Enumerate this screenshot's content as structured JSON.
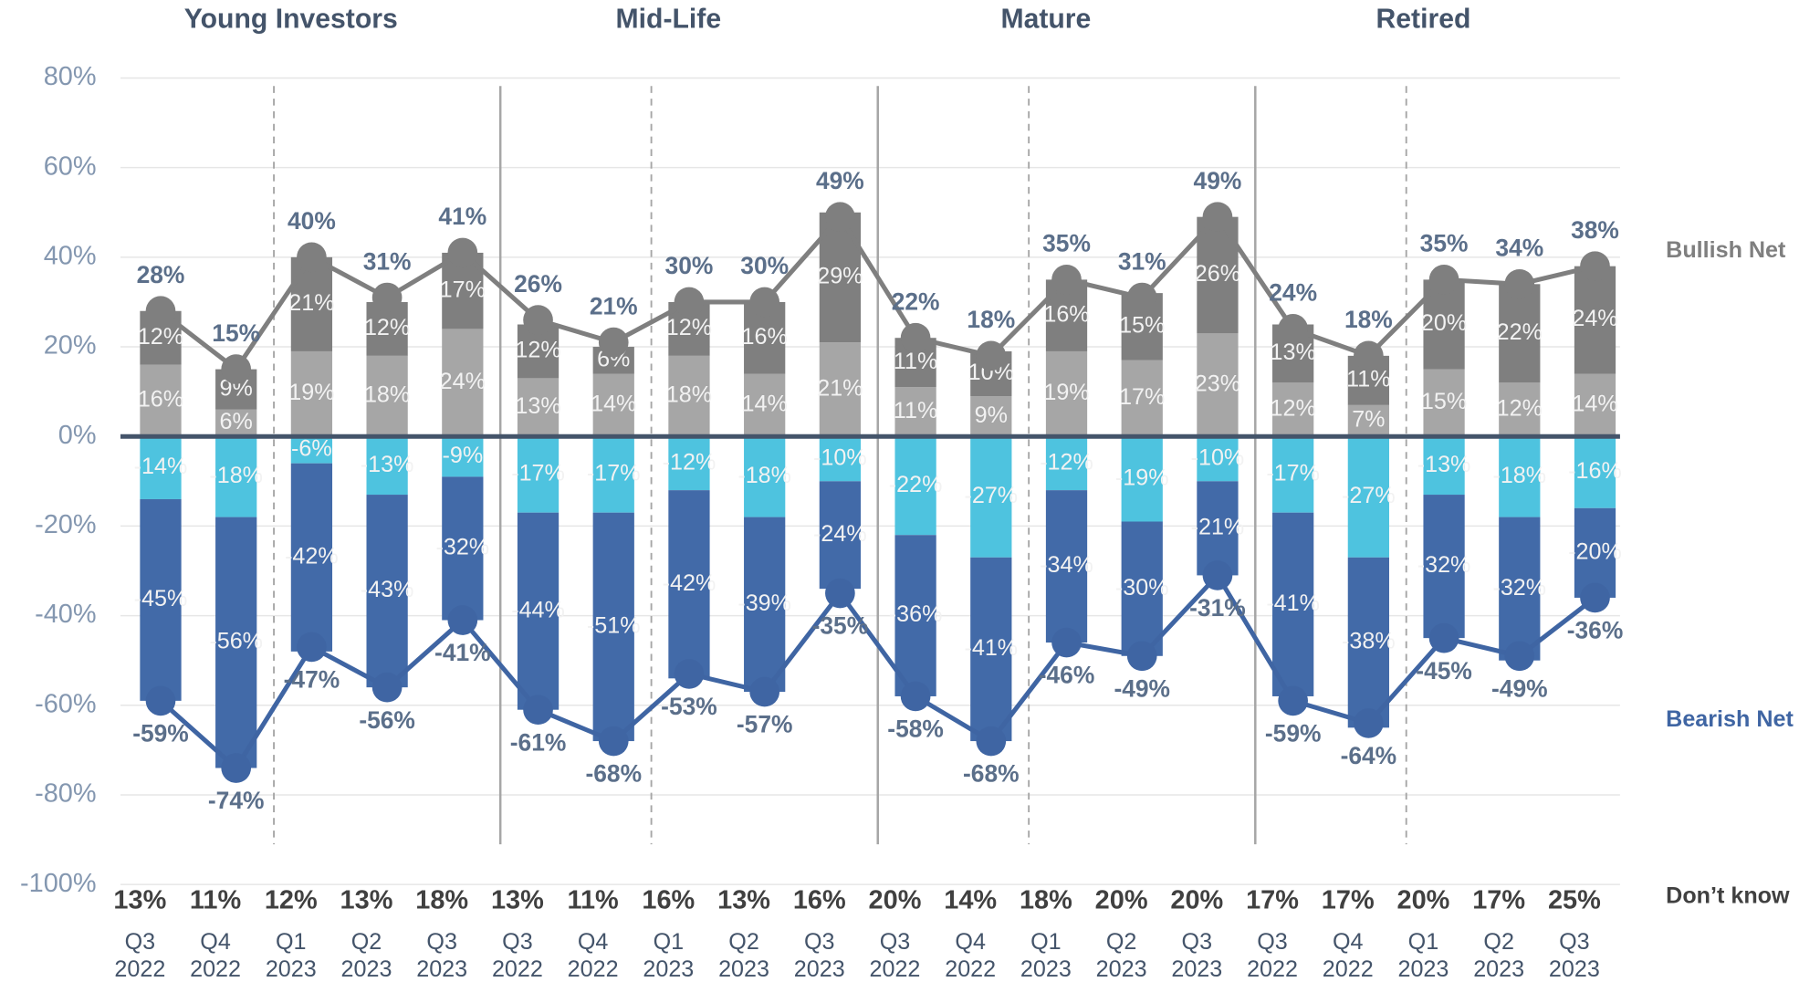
{
  "chart_data": {
    "type": "bar",
    "groups": [
      "Young Investors",
      "Mid-Life",
      "Mature",
      "Retired"
    ],
    "categories": [
      [
        "Q3",
        "2022"
      ],
      [
        "Q4",
        "2022"
      ],
      [
        "Q1",
        "2023"
      ],
      [
        "Q2",
        "2023"
      ],
      [
        "Q3",
        "2023"
      ],
      [
        "Q3",
        "2022"
      ],
      [
        "Q4",
        "2022"
      ],
      [
        "Q1",
        "2023"
      ],
      [
        "Q2",
        "2023"
      ],
      [
        "Q3",
        "2023"
      ],
      [
        "Q3",
        "2022"
      ],
      [
        "Q4",
        "2022"
      ],
      [
        "Q1",
        "2023"
      ],
      [
        "Q2",
        "2023"
      ],
      [
        "Q3",
        "2023"
      ],
      [
        "Q3",
        "2022"
      ],
      [
        "Q4",
        "2022"
      ],
      [
        "Q1",
        "2023"
      ],
      [
        "Q2",
        "2023"
      ],
      [
        "Q3",
        "2023"
      ]
    ],
    "ylim": [
      -100,
      80
    ],
    "yticks": [
      {
        "value": 80,
        "label": "80%"
      },
      {
        "value": 60,
        "label": "60%"
      },
      {
        "value": 40,
        "label": "40%"
      },
      {
        "value": 20,
        "label": "20%"
      },
      {
        "value": 0,
        "label": "0%"
      },
      {
        "value": -20,
        "label": "-20%"
      },
      {
        "value": -40,
        "label": "-40%"
      },
      {
        "value": -60,
        "label": "-60%"
      },
      {
        "value": -80,
        "label": "-80%"
      },
      {
        "value": -100,
        "label": "-100%"
      }
    ],
    "grid": true,
    "series": [
      {
        "type": "bar",
        "color": "#a6a6a6",
        "values": [
          16,
          6,
          19,
          18,
          24,
          13,
          14,
          18,
          14,
          21,
          11,
          9,
          19,
          17,
          23,
          12,
          7,
          15,
          12,
          14
        ],
        "value_labels": [
          "16%",
          "6%",
          "19%",
          "18%",
          "24%",
          "13%",
          "14%",
          "18%",
          "14%",
          "21%",
          "11%",
          "9%",
          "19%",
          "17%",
          "23%",
          "12%",
          "7%",
          "15%",
          "12%",
          "14%"
        ]
      },
      {
        "type": "bar",
        "color": "#7f7f7f",
        "values": [
          12,
          9,
          21,
          12,
          17,
          12,
          6,
          12,
          16,
          29,
          11,
          10,
          16,
          15,
          26,
          13,
          11,
          20,
          22,
          24
        ],
        "value_labels": [
          "12%",
          "9%",
          "21%",
          "12%",
          "17%",
          "12%",
          "6%",
          "12%",
          "16%",
          "29%",
          "11%",
          "10%",
          "16%",
          "15%",
          "26%",
          "13%",
          "11%",
          "20%",
          "22%",
          "24%"
        ]
      },
      {
        "type": "bar",
        "color": "#4ec3df",
        "values": [
          -14,
          -18,
          -6,
          -13,
          -9,
          -17,
          -17,
          -12,
          -18,
          -10,
          -22,
          -27,
          -12,
          -19,
          -10,
          -17,
          -27,
          -13,
          -18,
          -16
        ],
        "value_labels": [
          "-14%",
          "-18%",
          "-6%",
          "-13%",
          "-9%",
          "-17%",
          "-17%",
          "-12%",
          "-18%",
          "-10%",
          "-22%",
          "-27%",
          "-12%",
          "-19%",
          "-10%",
          "-17%",
          "-27%",
          "-13%",
          "-18%",
          "-16%"
        ]
      },
      {
        "type": "bar",
        "color": "#426aa8",
        "values": [
          -45,
          -56,
          -42,
          -43,
          -32,
          -44,
          -51,
          -42,
          -39,
          -24,
          -36,
          -41,
          -34,
          -30,
          -21,
          -41,
          -38,
          -32,
          -32,
          -20
        ],
        "value_labels": [
          "-45%",
          "-56%",
          "-42%",
          "-43%",
          "-32%",
          "-44%",
          "-51%",
          "-42%",
          "-39%",
          "-24%",
          "-36%",
          "-41%",
          "-34%",
          "-30%",
          "-21%",
          "-41%",
          "-38%",
          "-32%",
          "-32%",
          "-20%"
        ]
      },
      {
        "type": "line",
        "name": "Bullish Net",
        "color": "#7f7f7f",
        "values": [
          28,
          15,
          40,
          31,
          41,
          26,
          21,
          30,
          30,
          49,
          22,
          18,
          35,
          31,
          49,
          24,
          18,
          35,
          34,
          38
        ],
        "value_labels": [
          "28%",
          "15%",
          "40%",
          "31%",
          "41%",
          "26%",
          "21%",
          "30%",
          "30%",
          "49%",
          "22%",
          "18%",
          "35%",
          "31%",
          "49%",
          "24%",
          "18%",
          "35%",
          "34%",
          "38%"
        ]
      },
      {
        "type": "line",
        "name": "Bearish Net",
        "color": "#3f65a3",
        "values": [
          -59,
          -74,
          -47,
          -56,
          -41,
          -61,
          -68,
          -53,
          -57,
          -35,
          -58,
          -68,
          -46,
          -49,
          -31,
          -59,
          -64,
          -45,
          -49,
          -36
        ],
        "value_labels": [
          "-59%",
          "-74%",
          "-47%",
          "-56%",
          "-41%",
          "-61%",
          "-68%",
          "-53%",
          "-57%",
          "-35%",
          "-58%",
          "-68%",
          "-46%",
          "-49%",
          "-31%",
          "-59%",
          "-64%",
          "-45%",
          "-49%",
          "-36%"
        ]
      }
    ],
    "dont_know": {
      "name": "Don’t know",
      "values": [
        13,
        11,
        12,
        13,
        18,
        13,
        11,
        16,
        13,
        16,
        20,
        14,
        18,
        20,
        20,
        17,
        17,
        20,
        17,
        25
      ],
      "value_labels": [
        "13%",
        "11%",
        "12%",
        "13%",
        "18%",
        "13%",
        "11%",
        "16%",
        "13%",
        "16%",
        "20%",
        "14%",
        "18%",
        "20%",
        "20%",
        "17%",
        "17%",
        "20%",
        "17%",
        "25%"
      ]
    }
  }
}
